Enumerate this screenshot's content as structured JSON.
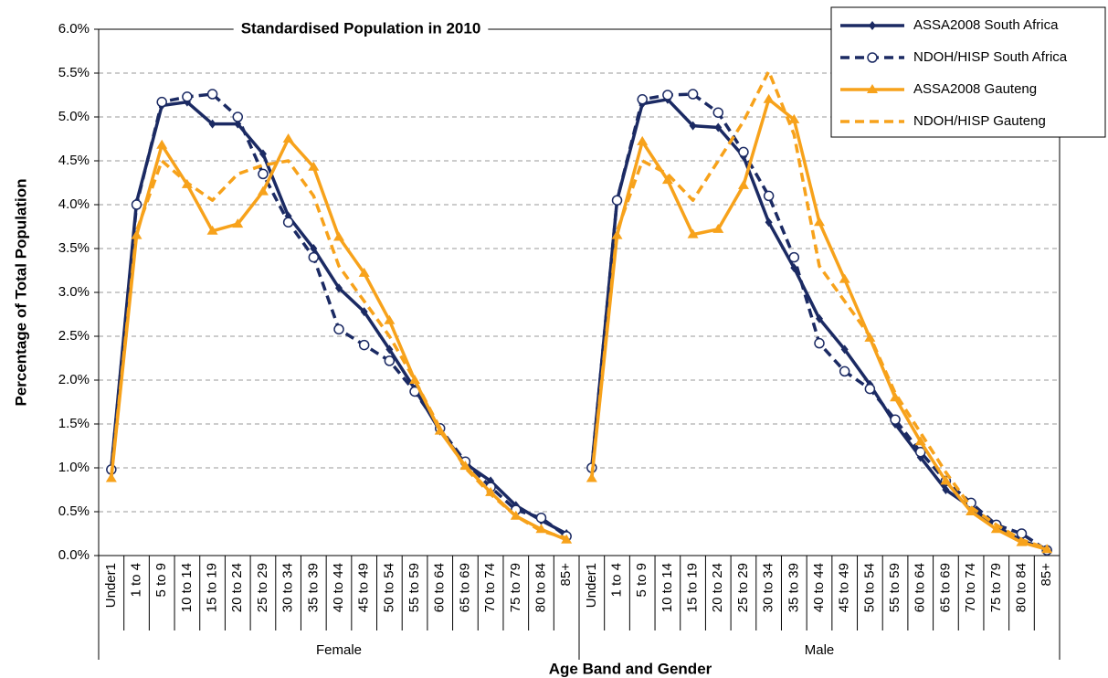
{
  "chart_data": {
    "type": "line",
    "title": "Standardised Population in 2010",
    "x_label": "Age Band and Gender",
    "y_label": "Percentage of Total Population",
    "groups": [
      "Female",
      "Male"
    ],
    "categories": [
      "Under1",
      "1 to 4",
      "5 to 9",
      "10 to 14",
      "15 to 19",
      "20 to 24",
      "25 to 29",
      "30 to 34",
      "35 to 39",
      "40 to 44",
      "45 to 49",
      "50 to 54",
      "55 to 59",
      "60 to 64",
      "65 to 69",
      "70 to 74",
      "75 to 79",
      "80 to 84",
      "85+",
      "Under1",
      "1 to 4",
      "5 to 9",
      "10 to 14",
      "15 to 19",
      "20 to 24",
      "25 to 29",
      "30 to 34",
      "35 to 39",
      "40 to 44",
      "45 to 49",
      "50 to 54",
      "55 to 59",
      "60 to 64",
      "65 to 69",
      "70 to 74",
      "75 to 79",
      "80 to 84",
      "85+"
    ],
    "series": [
      {
        "name": "ASSA2008 South Africa",
        "color": "#1b2a63",
        "dashed": false,
        "marker": "diamond",
        "values": [
          1.0,
          4.03,
          5.13,
          5.17,
          4.92,
          4.92,
          4.58,
          3.87,
          3.5,
          3.05,
          2.78,
          2.35,
          1.9,
          1.42,
          1.05,
          0.85,
          0.57,
          0.4,
          0.25,
          1.0,
          4.05,
          5.15,
          5.2,
          4.9,
          4.88,
          4.55,
          3.8,
          3.28,
          2.7,
          2.35,
          1.95,
          1.5,
          1.12,
          0.75,
          0.55,
          0.33,
          0.17,
          0.07
        ]
      },
      {
        "name": "NDOH/HISP South Africa",
        "color": "#1b2a63",
        "dashed": true,
        "marker": "circle",
        "values": [
          0.98,
          4.0,
          5.17,
          5.23,
          5.26,
          5.0,
          4.35,
          3.8,
          3.4,
          2.58,
          2.4,
          2.22,
          1.87,
          1.45,
          1.07,
          0.78,
          0.52,
          0.43,
          0.22,
          1.0,
          4.05,
          5.2,
          5.25,
          5.26,
          5.05,
          4.6,
          4.1,
          3.4,
          2.42,
          2.1,
          1.9,
          1.55,
          1.18,
          0.85,
          0.6,
          0.35,
          0.25,
          0.06
        ]
      },
      {
        "name": "ASSA2008 Gauteng",
        "color": "#f7a21b",
        "dashed": false,
        "marker": "triangle",
        "values": [
          0.88,
          3.65,
          4.68,
          4.23,
          3.7,
          3.78,
          4.15,
          4.75,
          4.43,
          3.63,
          3.22,
          2.68,
          2.0,
          1.42,
          1.02,
          0.72,
          0.45,
          0.3,
          0.18,
          0.88,
          3.65,
          4.72,
          4.28,
          3.66,
          3.72,
          4.22,
          5.2,
          4.97,
          3.8,
          3.15,
          2.48,
          1.8,
          1.3,
          0.85,
          0.5,
          0.3,
          0.15,
          0.07
        ]
      },
      {
        "name": "NDOH/HISP Gauteng",
        "color": "#f7a21b",
        "dashed": true,
        "marker": "none",
        "values": [
          0.9,
          3.7,
          4.5,
          4.25,
          4.05,
          4.35,
          4.45,
          4.5,
          4.1,
          3.3,
          2.9,
          2.5,
          2.0,
          1.45,
          1.0,
          0.7,
          0.45,
          0.28,
          0.2,
          0.9,
          3.7,
          4.5,
          4.35,
          4.05,
          4.5,
          4.95,
          5.52,
          4.8,
          3.3,
          2.9,
          2.5,
          1.85,
          1.4,
          0.95,
          0.55,
          0.35,
          0.18,
          0.08
        ]
      }
    ],
    "ylim": [
      0,
      6
    ],
    "yticks": [
      {
        "value": 0,
        "label": "0.0%"
      },
      {
        "value": 0.5,
        "label": "0.5%"
      },
      {
        "value": 1,
        "label": "1.0%"
      },
      {
        "value": 1.5,
        "label": "1.5%"
      },
      {
        "value": 2,
        "label": "2.0%"
      },
      {
        "value": 2.5,
        "label": "2.5%"
      },
      {
        "value": 3,
        "label": "3.0%"
      },
      {
        "value": 3.5,
        "label": "3.5%"
      },
      {
        "value": 4,
        "label": "4.0%"
      },
      {
        "value": 4.5,
        "label": "4.5%"
      },
      {
        "value": 5,
        "label": "5.0%"
      },
      {
        "value": 5.5,
        "label": "5.5%"
      },
      {
        "value": 6,
        "label": "6.0%"
      }
    ],
    "grid": true,
    "legend_position": "top-right"
  }
}
